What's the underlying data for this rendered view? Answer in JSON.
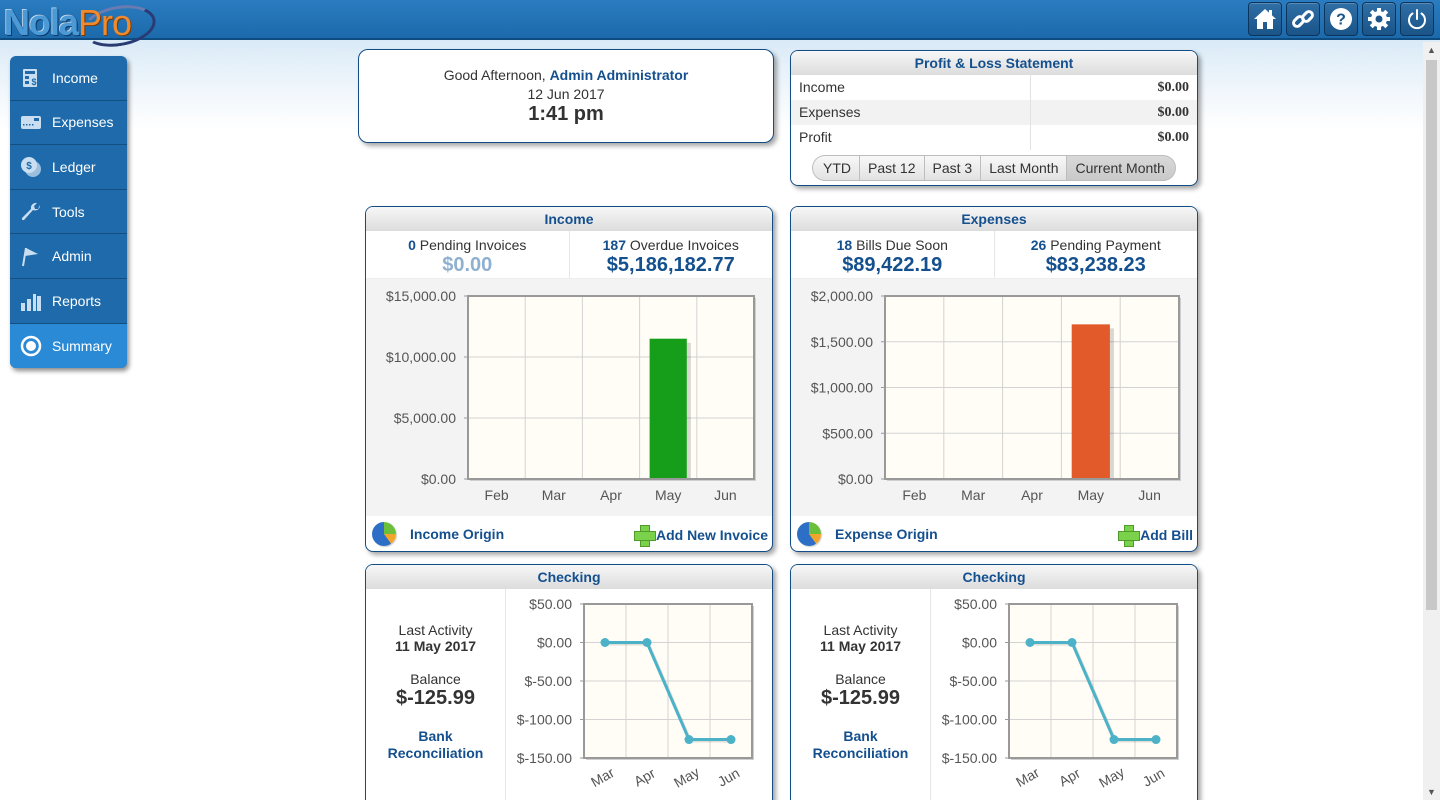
{
  "app": {
    "logo_primary": "Nola",
    "logo_secondary": "Pro"
  },
  "top_icons": [
    {
      "name": "home-icon",
      "label": "Home"
    },
    {
      "name": "link-icon",
      "label": "Links"
    },
    {
      "name": "help-icon",
      "label": "Help"
    },
    {
      "name": "gear-icon",
      "label": "Settings"
    },
    {
      "name": "power-icon",
      "label": "Logout"
    }
  ],
  "sidebar": {
    "items": [
      {
        "label": "Income",
        "icon": "invoice-icon"
      },
      {
        "label": "Expenses",
        "icon": "credit-card-icon"
      },
      {
        "label": "Ledger",
        "icon": "coins-icon"
      },
      {
        "label": "Tools",
        "icon": "wrench-icon"
      },
      {
        "label": "Admin",
        "icon": "flag-icon"
      },
      {
        "label": "Reports",
        "icon": "bar-chart-icon"
      },
      {
        "label": "Summary",
        "icon": "radio-icon",
        "active": true
      }
    ]
  },
  "greeting": {
    "salutation": "Good Afternoon,",
    "user": "Admin Administrator",
    "date": "12 Jun 2017",
    "time": "1:41 pm"
  },
  "profit_loss": {
    "title": "Profit & Loss Statement",
    "rows": [
      {
        "label": "Income",
        "value": "$0.00"
      },
      {
        "label": "Expenses",
        "value": "$0.00"
      },
      {
        "label": "Profit",
        "value": "$0.00"
      }
    ],
    "periods": [
      "YTD",
      "Past 12",
      "Past 3",
      "Last Month",
      "Current Month"
    ],
    "selected_period": "Current Month"
  },
  "income": {
    "title": "Income",
    "stats": [
      {
        "count": "0",
        "label": "Pending Invoices",
        "amount": "$0.00",
        "muted": true
      },
      {
        "count": "187",
        "label": "Overdue Invoices",
        "amount": "$5,186,182.77"
      }
    ],
    "origin_link": "Income Origin",
    "add_link": "Add New Invoice"
  },
  "expenses": {
    "title": "Expenses",
    "stats": [
      {
        "count": "18",
        "label": "Bills Due Soon",
        "amount": "$89,422.19"
      },
      {
        "count": "26",
        "label": "Pending Payment",
        "amount": "$83,238.23"
      }
    ],
    "origin_link": "Expense Origin",
    "add_link": "Add Bill"
  },
  "checking": [
    {
      "title": "Checking",
      "last_activity_label": "Last Activity",
      "last_activity": "11 May 2017",
      "balance_label": "Balance",
      "balance": "$-125.99",
      "link_line1": "Bank",
      "link_line2": "Reconciliation"
    },
    {
      "title": "Checking",
      "last_activity_label": "Last Activity",
      "last_activity": "11 May 2017",
      "balance_label": "Balance",
      "balance": "$-125.99",
      "link_line1": "Bank",
      "link_line2": "Reconciliation"
    }
  ],
  "colors": {
    "brand": "#1e6aaa",
    "income_bar": "#169e1a",
    "expense_bar": "#e25a2a",
    "checking_line": "#4bb2c8"
  },
  "chart_data": [
    {
      "id": "income-chart",
      "type": "bar",
      "title": "Income",
      "categories": [
        "Feb",
        "Mar",
        "Apr",
        "May",
        "Jun"
      ],
      "values": [
        0,
        0,
        0,
        11500,
        0
      ],
      "ylim": [
        0,
        15000
      ],
      "yticks": [
        0,
        5000,
        10000,
        15000
      ],
      "ytick_labels": [
        "$0.00",
        "$5,000.00",
        "$10,000.00",
        "$15,000.00"
      ],
      "xlabel": "",
      "ylabel": "",
      "grid": true,
      "color": "#169e1a"
    },
    {
      "id": "expense-chart",
      "type": "bar",
      "title": "Expenses",
      "categories": [
        "Feb",
        "Mar",
        "Apr",
        "May",
        "Jun"
      ],
      "values": [
        0,
        0,
        0,
        1690,
        0
      ],
      "ylim": [
        0,
        2000
      ],
      "yticks": [
        0,
        500,
        1000,
        1500,
        2000
      ],
      "ytick_labels": [
        "$0.00",
        "$500.00",
        "$1,000.00",
        "$1,500.00",
        "$2,000.00"
      ],
      "xlabel": "",
      "ylabel": "",
      "grid": true,
      "color": "#e25a2a"
    },
    {
      "id": "checking-chart-1",
      "type": "line",
      "title": "Checking",
      "categories": [
        "Mar",
        "Apr",
        "May",
        "Jun"
      ],
      "values": [
        0,
        0,
        -125.99,
        -125.99
      ],
      "ylim": [
        -150,
        50
      ],
      "yticks": [
        -150,
        -100,
        -50,
        0,
        50
      ],
      "ytick_labels": [
        "$-150.00",
        "$-100.00",
        "$-50.00",
        "$0.00",
        "$50.00"
      ],
      "xlabel": "",
      "ylabel": "",
      "grid": true,
      "color": "#4bb2c8"
    },
    {
      "id": "checking-chart-2",
      "type": "line",
      "title": "Checking",
      "categories": [
        "Mar",
        "Apr",
        "May",
        "Jun"
      ],
      "values": [
        0,
        0,
        -125.99,
        -125.99
      ],
      "ylim": [
        -150,
        50
      ],
      "yticks": [
        -150,
        -100,
        -50,
        0,
        50
      ],
      "ytick_labels": [
        "$-150.00",
        "$-100.00",
        "$-50.00",
        "$0.00",
        "$50.00"
      ],
      "xlabel": "",
      "ylabel": "",
      "grid": true,
      "color": "#4bb2c8"
    }
  ]
}
